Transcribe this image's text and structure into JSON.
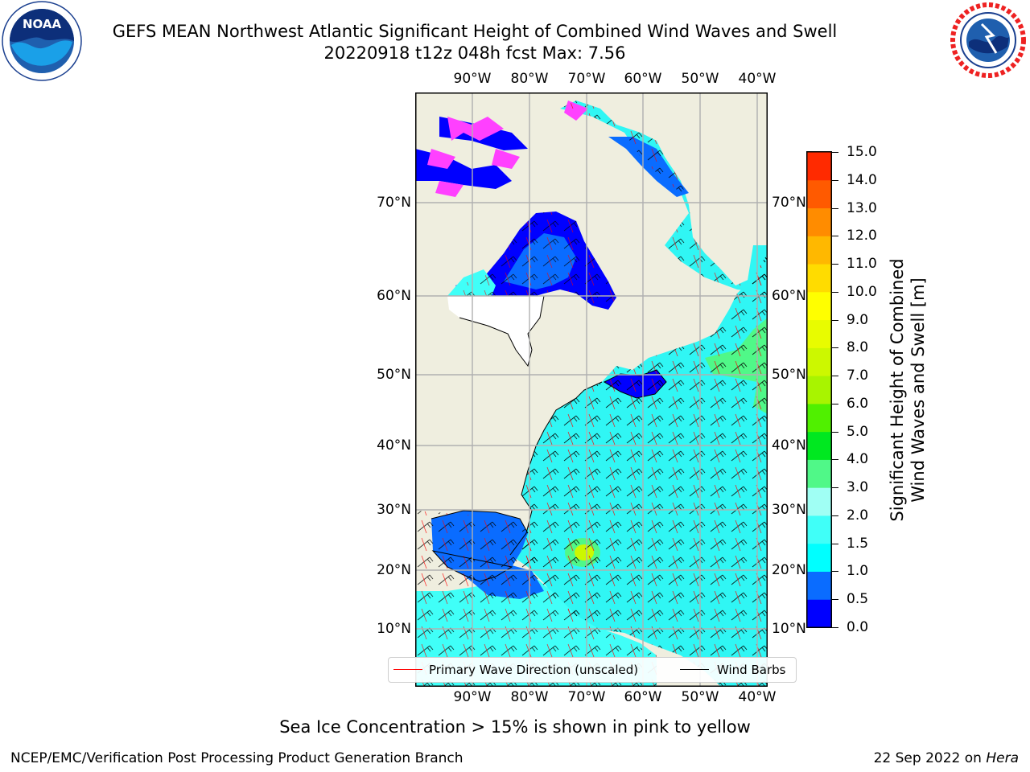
{
  "title": {
    "line1": "GEFS MEAN Northwest Atlantic Significant Height of Combined Wind Waves and Swell",
    "line2": "20220918 t12z 048h fcst   Max: 7.56"
  },
  "logos": {
    "left": {
      "text": "NOAA",
      "ring_text": "NATIONAL OCEANIC AND ATMOSPHERIC ADMINISTRATION · U.S. DEPARTMENT OF COMMERCE"
    },
    "right": {
      "ring_text": "NATIONAL WEATHER SERVICE"
    }
  },
  "map": {
    "lon_ticks": [
      "90°W",
      "80°W",
      "70°W",
      "60°W",
      "50°W",
      "40°W"
    ],
    "lat_ticks": [
      "70°N",
      "60°N",
      "50°N",
      "40°N",
      "30°N",
      "20°N",
      "10°N"
    ]
  },
  "colorbar": {
    "label": "Significant Height of Combined\nWind Waves and Swell [m]",
    "ticks": [
      "0.0",
      "0.5",
      "1.0",
      "1.5",
      "2.0",
      "3.0",
      "4.0",
      "5.0",
      "6.0",
      "7.0",
      "8.0",
      "9.0",
      "10.0",
      "11.0",
      "12.0",
      "13.0",
      "14.0",
      "15.0"
    ],
    "colors": [
      "#0000ff",
      "#0a6cff",
      "#00ffff",
      "#40fff8",
      "#a0fff4",
      "#50f888",
      "#00e820",
      "#50f000",
      "#a8f400",
      "#ccf800",
      "#e8fc00",
      "#ffff00",
      "#ffdc00",
      "#ffb800",
      "#ff8c00",
      "#ff5a00",
      "#ff2a00"
    ]
  },
  "legend": {
    "primary_wave": {
      "label": "Primary Wave Direction (unscaled)",
      "color": "#ff0000"
    },
    "wind_barbs": {
      "label": "Wind Barbs",
      "color": "#000000"
    }
  },
  "footer": {
    "note": "Sea Ice Concentration > 15% is shown in pink to yellow",
    "left": "NCEP/EMC/Verification Post Processing Product Generation Branch",
    "right_date": "22 Sep 2022 on",
    "right_host": "Hera"
  }
}
